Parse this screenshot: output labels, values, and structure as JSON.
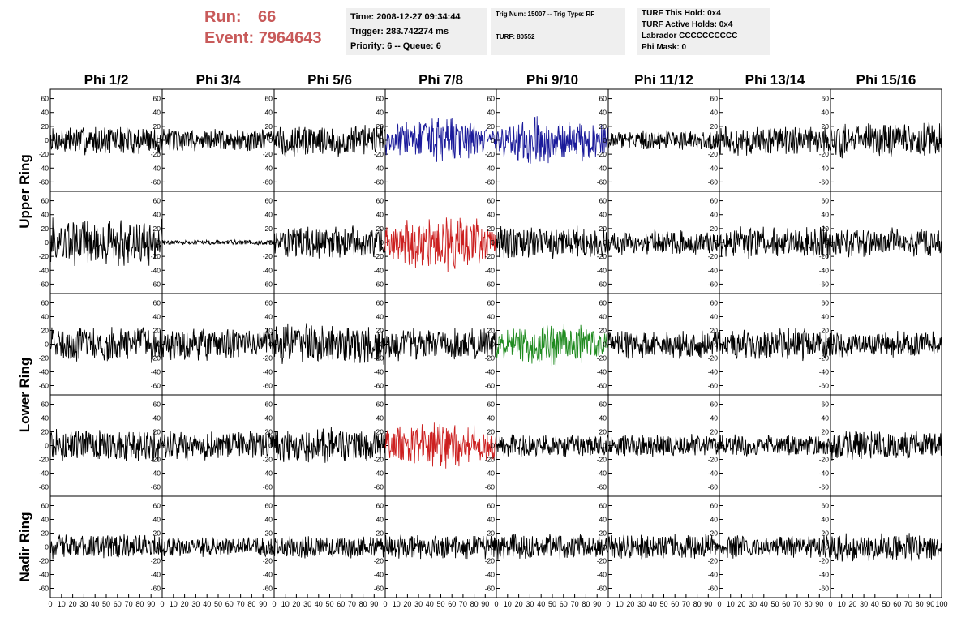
{
  "header": {
    "run_label": "Run:",
    "run_value": "66",
    "event_label": "Event:",
    "event_value": "7964643",
    "run_color": "#c85a5a"
  },
  "info": {
    "time": "Time: 2008-12-27 09:34:44",
    "trigger": "Trigger: 283.742274 ms",
    "priority": "Priority: 6 -- Queue: 6",
    "trig_num": "Trig Num: 15007 -- Trig Type: RF",
    "turf": "TURF: 80552",
    "turf_this_hold": "TURF This Hold: 0x4",
    "turf_active_holds": "TURF Active Holds: 0x4",
    "labrador": "Labrador CCCCCCCCCC",
    "phi_mask": "Phi Mask: 0"
  },
  "chart_data": {
    "type": "line",
    "title": "",
    "phi_labels": [
      "Phi 1/2",
      "Phi 3/4",
      "Phi 5/6",
      "Phi 7/8",
      "Phi 9/10",
      "Phi 11/12",
      "Phi 13/14",
      "Phi 15/16"
    ],
    "ring_labels": [
      {
        "text": "Upper Ring",
        "rows": [
          0,
          1
        ]
      },
      {
        "text": "Lower Ring",
        "rows": [
          2,
          3
        ]
      },
      {
        "text": "Nadir Ring",
        "rows": [
          4,
          4
        ]
      }
    ],
    "xlim": [
      0,
      100
    ],
    "ylim": [
      -70,
      70
    ],
    "yticks": [
      -60,
      -40,
      -20,
      0,
      20,
      40,
      60
    ],
    "xticks": [
      0,
      10,
      20,
      30,
      40,
      50,
      60,
      70,
      80,
      90,
      100
    ],
    "colors": {
      "default": "#000000",
      "blue": "#1a1a9a",
      "red": "#cc2020",
      "green": "#1e8a1e"
    },
    "grid": false,
    "note_amplitude": "approximate peak amplitude (ADC units) per channel",
    "channels": [
      [
        {
          "amp": 18,
          "color": "default"
        },
        {
          "amp": 14,
          "color": "default"
        },
        {
          "amp": 20,
          "color": "default"
        },
        {
          "amp": 28,
          "color": "blue"
        },
        {
          "amp": 30,
          "color": "blue"
        },
        {
          "amp": 12,
          "color": "default"
        },
        {
          "amp": 18,
          "color": "default"
        },
        {
          "amp": 22,
          "color": "default"
        }
      ],
      [
        {
          "amp": 30,
          "color": "default"
        },
        {
          "amp": 3,
          "color": "default"
        },
        {
          "amp": 20,
          "color": "default"
        },
        {
          "amp": 35,
          "color": "red"
        },
        {
          "amp": 20,
          "color": "default"
        },
        {
          "amp": 15,
          "color": "default"
        },
        {
          "amp": 20,
          "color": "default"
        },
        {
          "amp": 18,
          "color": "default"
        }
      ],
      [
        {
          "amp": 22,
          "color": "default"
        },
        {
          "amp": 20,
          "color": "default"
        },
        {
          "amp": 25,
          "color": "default"
        },
        {
          "amp": 20,
          "color": "default"
        },
        {
          "amp": 28,
          "color": "green"
        },
        {
          "amp": 18,
          "color": "default"
        },
        {
          "amp": 20,
          "color": "default"
        },
        {
          "amp": 16,
          "color": "default"
        }
      ],
      [
        {
          "amp": 20,
          "color": "default"
        },
        {
          "amp": 18,
          "color": "default"
        },
        {
          "amp": 22,
          "color": "default"
        },
        {
          "amp": 30,
          "color": "red"
        },
        {
          "amp": 14,
          "color": "default"
        },
        {
          "amp": 14,
          "color": "default"
        },
        {
          "amp": 14,
          "color": "default"
        },
        {
          "amp": 18,
          "color": "default"
        }
      ],
      [
        {
          "amp": 16,
          "color": "default"
        },
        {
          "amp": 12,
          "color": "default"
        },
        {
          "amp": 14,
          "color": "default"
        },
        {
          "amp": 16,
          "color": "default"
        },
        {
          "amp": 16,
          "color": "default"
        },
        {
          "amp": 16,
          "color": "default"
        },
        {
          "amp": 14,
          "color": "default"
        },
        {
          "amp": 18,
          "color": "default"
        }
      ]
    ]
  }
}
